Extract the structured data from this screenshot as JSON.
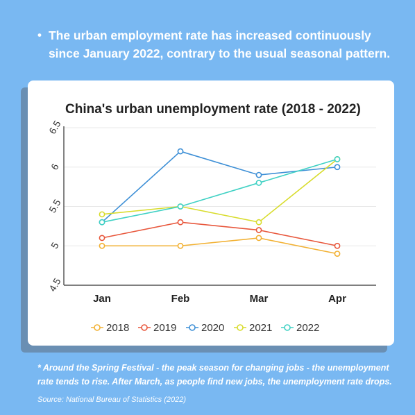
{
  "headline": {
    "bullet": "•",
    "text": "The urban employment rate has increased continuously since January 2022, contrary to the usual seasonal pattern."
  },
  "note": "* Around the Spring Festival - the peak season for changing jobs - the unemployment rate tends to rise. After March, as people find new jobs, the unemployment rate drops.",
  "source": "Source: National Bureau of Statistics (2022)",
  "colors": {
    "background": "#79b8f2",
    "card": "#ffffff",
    "2018": "#f2b133",
    "2019": "#e8573c",
    "2020": "#3d8fd6",
    "2021": "#d8dc2c",
    "2022": "#3fd1c4"
  },
  "chart_data": {
    "type": "line",
    "title": "China's urban unemployment rate (2018 - 2022)",
    "xlabel": "",
    "ylabel": "",
    "categories": [
      "Jan",
      "Feb",
      "Mar",
      "Apr"
    ],
    "ylim": [
      4.5,
      6.5
    ],
    "yticks": [
      4.5,
      5,
      5.5,
      6,
      6.5
    ],
    "ytick_labels": [
      "4.5",
      "5",
      "5.5",
      "6",
      "6.5"
    ],
    "grid": true,
    "legend_position": "bottom",
    "series": [
      {
        "name": "2018",
        "color": "#f2b133",
        "values": [
          5.0,
          5.0,
          5.1,
          4.9
        ]
      },
      {
        "name": "2019",
        "color": "#e8573c",
        "values": [
          5.1,
          5.3,
          5.2,
          5.0
        ]
      },
      {
        "name": "2020",
        "color": "#3d8fd6",
        "values": [
          5.3,
          6.2,
          5.9,
          6.0
        ]
      },
      {
        "name": "2021",
        "color": "#d8dc2c",
        "values": [
          5.4,
          5.5,
          5.3,
          6.1
        ]
      },
      {
        "name": "2022",
        "color": "#3fd1c4",
        "values": [
          5.3,
          5.5,
          5.8,
          6.1
        ]
      }
    ]
  }
}
